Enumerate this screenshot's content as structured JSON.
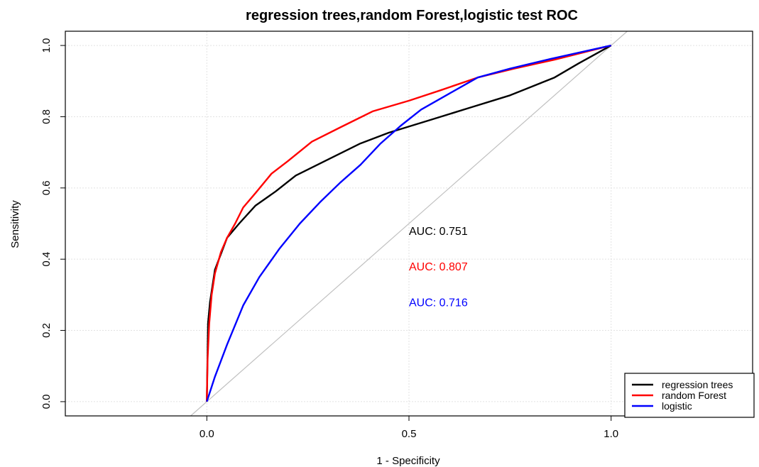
{
  "chart_data": {
    "type": "line",
    "title": "regression trees,random Forest,logistic test ROC",
    "xlabel": "1 - Specificity",
    "ylabel": "Sensitivity",
    "xlim": [
      -0.35,
      1.35
    ],
    "ylim": [
      -0.04,
      1.04
    ],
    "x_ticks": [
      0.0,
      0.5,
      1.0
    ],
    "x_tick_labels": [
      "0.0",
      "0.5",
      "1.0"
    ],
    "y_ticks": [
      0.0,
      0.2,
      0.4,
      0.6,
      0.8,
      1.0
    ],
    "y_tick_labels": [
      "0.0",
      "0.2",
      "0.4",
      "0.6",
      "0.8",
      "1.0"
    ],
    "grid": true,
    "legend_position": "bottom-right",
    "reference_line": {
      "slope": 1,
      "intercept": 0,
      "color": "#c0c0c0"
    },
    "series": [
      {
        "name": "regression trees",
        "color": "#000000",
        "x": [
          0.0,
          0.003,
          0.008,
          0.02,
          0.05,
          0.08,
          0.12,
          0.17,
          0.22,
          0.3,
          0.38,
          0.45,
          0.55,
          0.65,
          0.75,
          0.86,
          0.92,
          1.0
        ],
        "y": [
          0.0,
          0.22,
          0.28,
          0.37,
          0.46,
          0.5,
          0.55,
          0.59,
          0.635,
          0.68,
          0.725,
          0.755,
          0.79,
          0.825,
          0.86,
          0.91,
          0.95,
          1.0
        ]
      },
      {
        "name": "random Forest",
        "color": "#ff0000",
        "x": [
          0.0,
          0.002,
          0.006,
          0.012,
          0.02,
          0.035,
          0.05,
          0.07,
          0.09,
          0.12,
          0.16,
          0.2,
          0.26,
          0.33,
          0.41,
          0.5,
          0.58,
          0.67,
          0.76,
          0.86,
          1.0
        ],
        "y": [
          0.0,
          0.12,
          0.22,
          0.3,
          0.36,
          0.42,
          0.46,
          0.5,
          0.545,
          0.585,
          0.64,
          0.675,
          0.73,
          0.77,
          0.815,
          0.845,
          0.875,
          0.91,
          0.935,
          0.96,
          1.0
        ]
      },
      {
        "name": "logistic",
        "color": "#0000ff",
        "x": [
          0.0,
          0.02,
          0.05,
          0.09,
          0.13,
          0.18,
          0.23,
          0.28,
          0.33,
          0.38,
          0.43,
          0.48,
          0.53,
          0.6,
          0.67,
          0.75,
          0.85,
          1.0
        ],
        "y": [
          0.0,
          0.07,
          0.16,
          0.27,
          0.35,
          0.43,
          0.5,
          0.56,
          0.615,
          0.665,
          0.725,
          0.775,
          0.82,
          0.865,
          0.91,
          0.935,
          0.962,
          1.0
        ]
      }
    ],
    "annotations": [
      {
        "text": "AUC: 0.751",
        "x": 0.5,
        "y": 0.48,
        "color": "#000000"
      },
      {
        "text": "AUC: 0.807",
        "x": 0.5,
        "y": 0.38,
        "color": "#ff0000"
      },
      {
        "text": "AUC: 0.716",
        "x": 0.5,
        "y": 0.28,
        "color": "#0000ff"
      }
    ]
  }
}
